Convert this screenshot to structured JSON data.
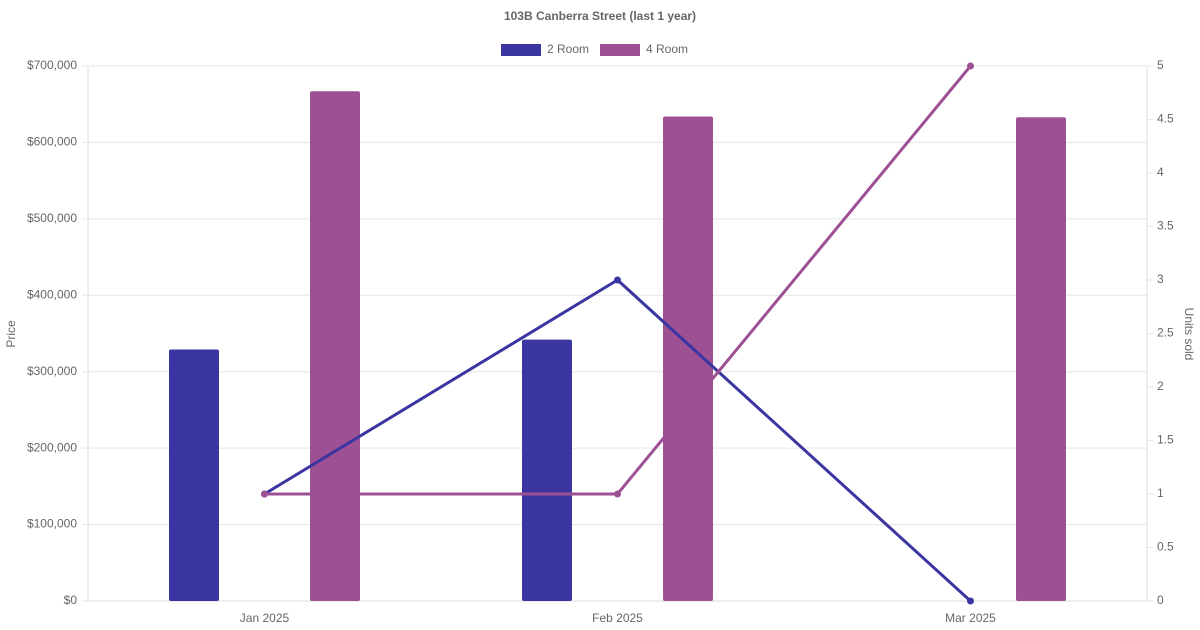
{
  "chart_data": {
    "type": "bar-line",
    "title": "103B Canberra Street (last 1 year)",
    "y_label": "Price",
    "y2_label": "Units sold",
    "categories": [
      "Jan 2025",
      "Feb 2025",
      "Mar 2025"
    ],
    "series": [
      {
        "name": "2 Room",
        "color": "#3a35a0",
        "values": [
          329000,
          342000,
          null
        ],
        "units_sold": [
          1,
          3,
          0
        ]
      },
      {
        "name": "4 Room",
        "color": "#9e5095",
        "values": [
          667000,
          634000,
          633000
        ],
        "units_sold": [
          1,
          1,
          5
        ]
      }
    ],
    "ylim": [
      0,
      700000
    ],
    "yticks": [
      {
        "value": 0,
        "label": "$0"
      },
      {
        "value": 100000,
        "label": "$100,000"
      },
      {
        "value": 200000,
        "label": "$200,000"
      },
      {
        "value": 300000,
        "label": "$300,000"
      },
      {
        "value": 400000,
        "label": "$400,000"
      },
      {
        "value": 500000,
        "label": "$500,000"
      },
      {
        "value": 600000,
        "label": "$600,000"
      },
      {
        "value": 700000,
        "label": "$700,000"
      }
    ],
    "y2lim": [
      0,
      5
    ],
    "y2ticks": [
      0,
      0.5,
      1,
      1.5,
      2,
      2.5,
      3,
      3.5,
      4,
      4.5,
      5
    ],
    "grid": true,
    "legend": "top"
  }
}
